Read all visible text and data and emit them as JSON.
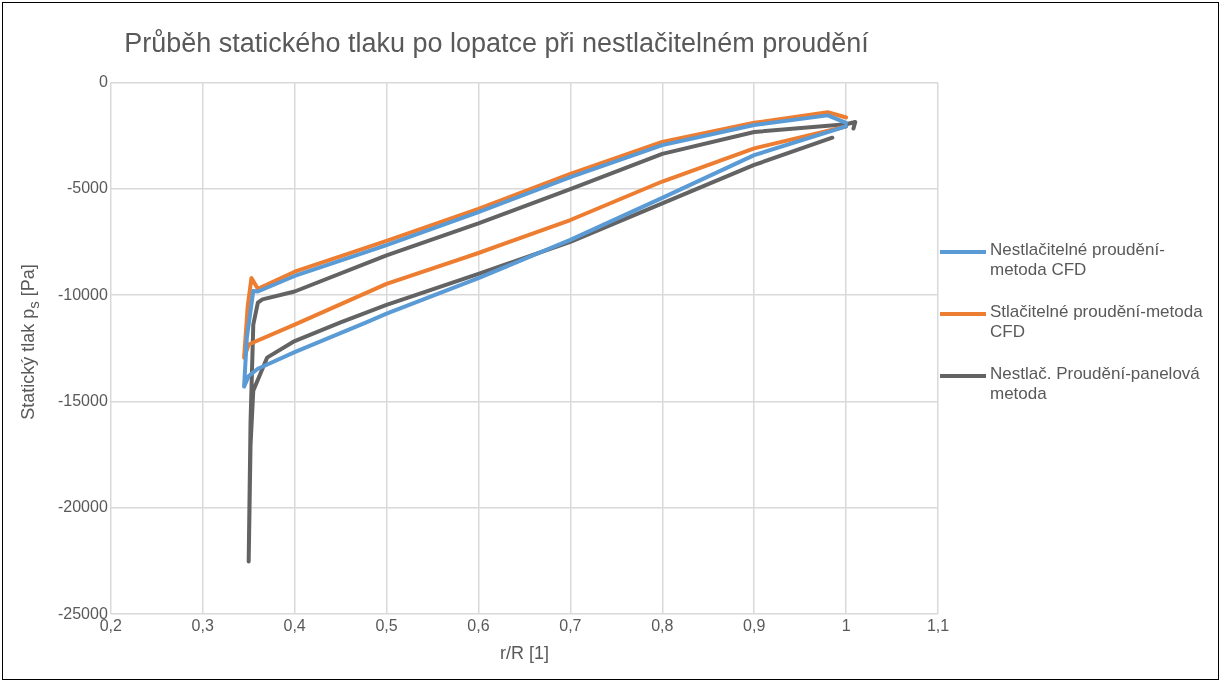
{
  "chart_data": {
    "type": "line",
    "title": "Průběh statického tlaku po lopatce při nestlačitelném proudění",
    "xlabel": "r/R [1]",
    "ylabel": "Statický tlak p$_{s}$ [Pa]",
    "xlim": [
      0.2,
      1.1
    ],
    "xticks": [
      {
        "value": 0.2,
        "label": "0,2"
      },
      {
        "value": 0.3,
        "label": "0,3"
      },
      {
        "value": 0.4,
        "label": "0,4"
      },
      {
        "value": 0.5,
        "label": "0,5"
      },
      {
        "value": 0.6,
        "label": "0,6"
      },
      {
        "value": 0.7,
        "label": "0,7"
      },
      {
        "value": 0.8,
        "label": "0,8"
      },
      {
        "value": 0.9,
        "label": "0,9"
      },
      {
        "value": 1,
        "label": "1"
      },
      {
        "value": 1.1,
        "label": "1,1"
      }
    ],
    "ylim": [
      -25000,
      0
    ],
    "yticks": [
      -25000,
      -20000,
      -15000,
      -10000,
      -5000,
      0
    ],
    "grid": true,
    "legend": "right",
    "marker": "none",
    "line_style": "solid",
    "series": [
      {
        "name": "Nestlačitelné proudění-metoda CFD",
        "color": "#5b9bd5",
        "x": [
          1.0,
          0.98,
          0.9,
          0.8,
          0.7,
          0.6,
          0.5,
          0.4,
          0.36,
          0.355,
          0.348,
          0.345,
          0.35,
          0.36,
          0.4,
          0.478,
          0.5,
          0.6,
          0.7,
          0.8,
          0.9,
          1.0
        ],
        "values": [
          -1900,
          -1550,
          -2000,
          -2950,
          -4450,
          -6100,
          -7650,
          -9100,
          -9830,
          -9800,
          -12000,
          -14300,
          -13800,
          -13460,
          -12680,
          -11280,
          -10870,
          -9200,
          -7400,
          -5430,
          -3420,
          -2070
        ]
      },
      {
        "name": "Stlačitelné proudění-metoda CFD",
        "color": "#ed7d31",
        "x": [
          1.0,
          0.98,
          0.9,
          0.8,
          0.7,
          0.6,
          0.5,
          0.4,
          0.36,
          0.353,
          0.349,
          0.345,
          0.35,
          0.4,
          0.5,
          0.6,
          0.7,
          0.8,
          0.9,
          1.0
        ],
        "values": [
          -1650,
          -1400,
          -1900,
          -2800,
          -4300,
          -5950,
          -7450,
          -8900,
          -9700,
          -9200,
          -10500,
          -12940,
          -12320,
          -11390,
          -9470,
          -8020,
          -6470,
          -4660,
          -3100,
          -2070
        ]
      },
      {
        "name": "Nestlač. Proudění-panelová metoda",
        "color": "#636363",
        "x": [
          0.985,
          0.9,
          0.8,
          0.7,
          0.6,
          0.5,
          0.45,
          0.4,
          0.37,
          0.355,
          0.352,
          0.35,
          0.352,
          0.355,
          0.36,
          0.365,
          0.4,
          0.5,
          0.6,
          0.7,
          0.8,
          0.9,
          1.0,
          1.01,
          1.008
        ],
        "values": [
          -2600,
          -3880,
          -5690,
          -7500,
          -9000,
          -10460,
          -11280,
          -12160,
          -12940,
          -14490,
          -17080,
          -22520,
          -16000,
          -11390,
          -10350,
          -10200,
          -9830,
          -8130,
          -6630,
          -5020,
          -3360,
          -2330,
          -1970,
          -1860,
          -2170
        ]
      }
    ]
  }
}
